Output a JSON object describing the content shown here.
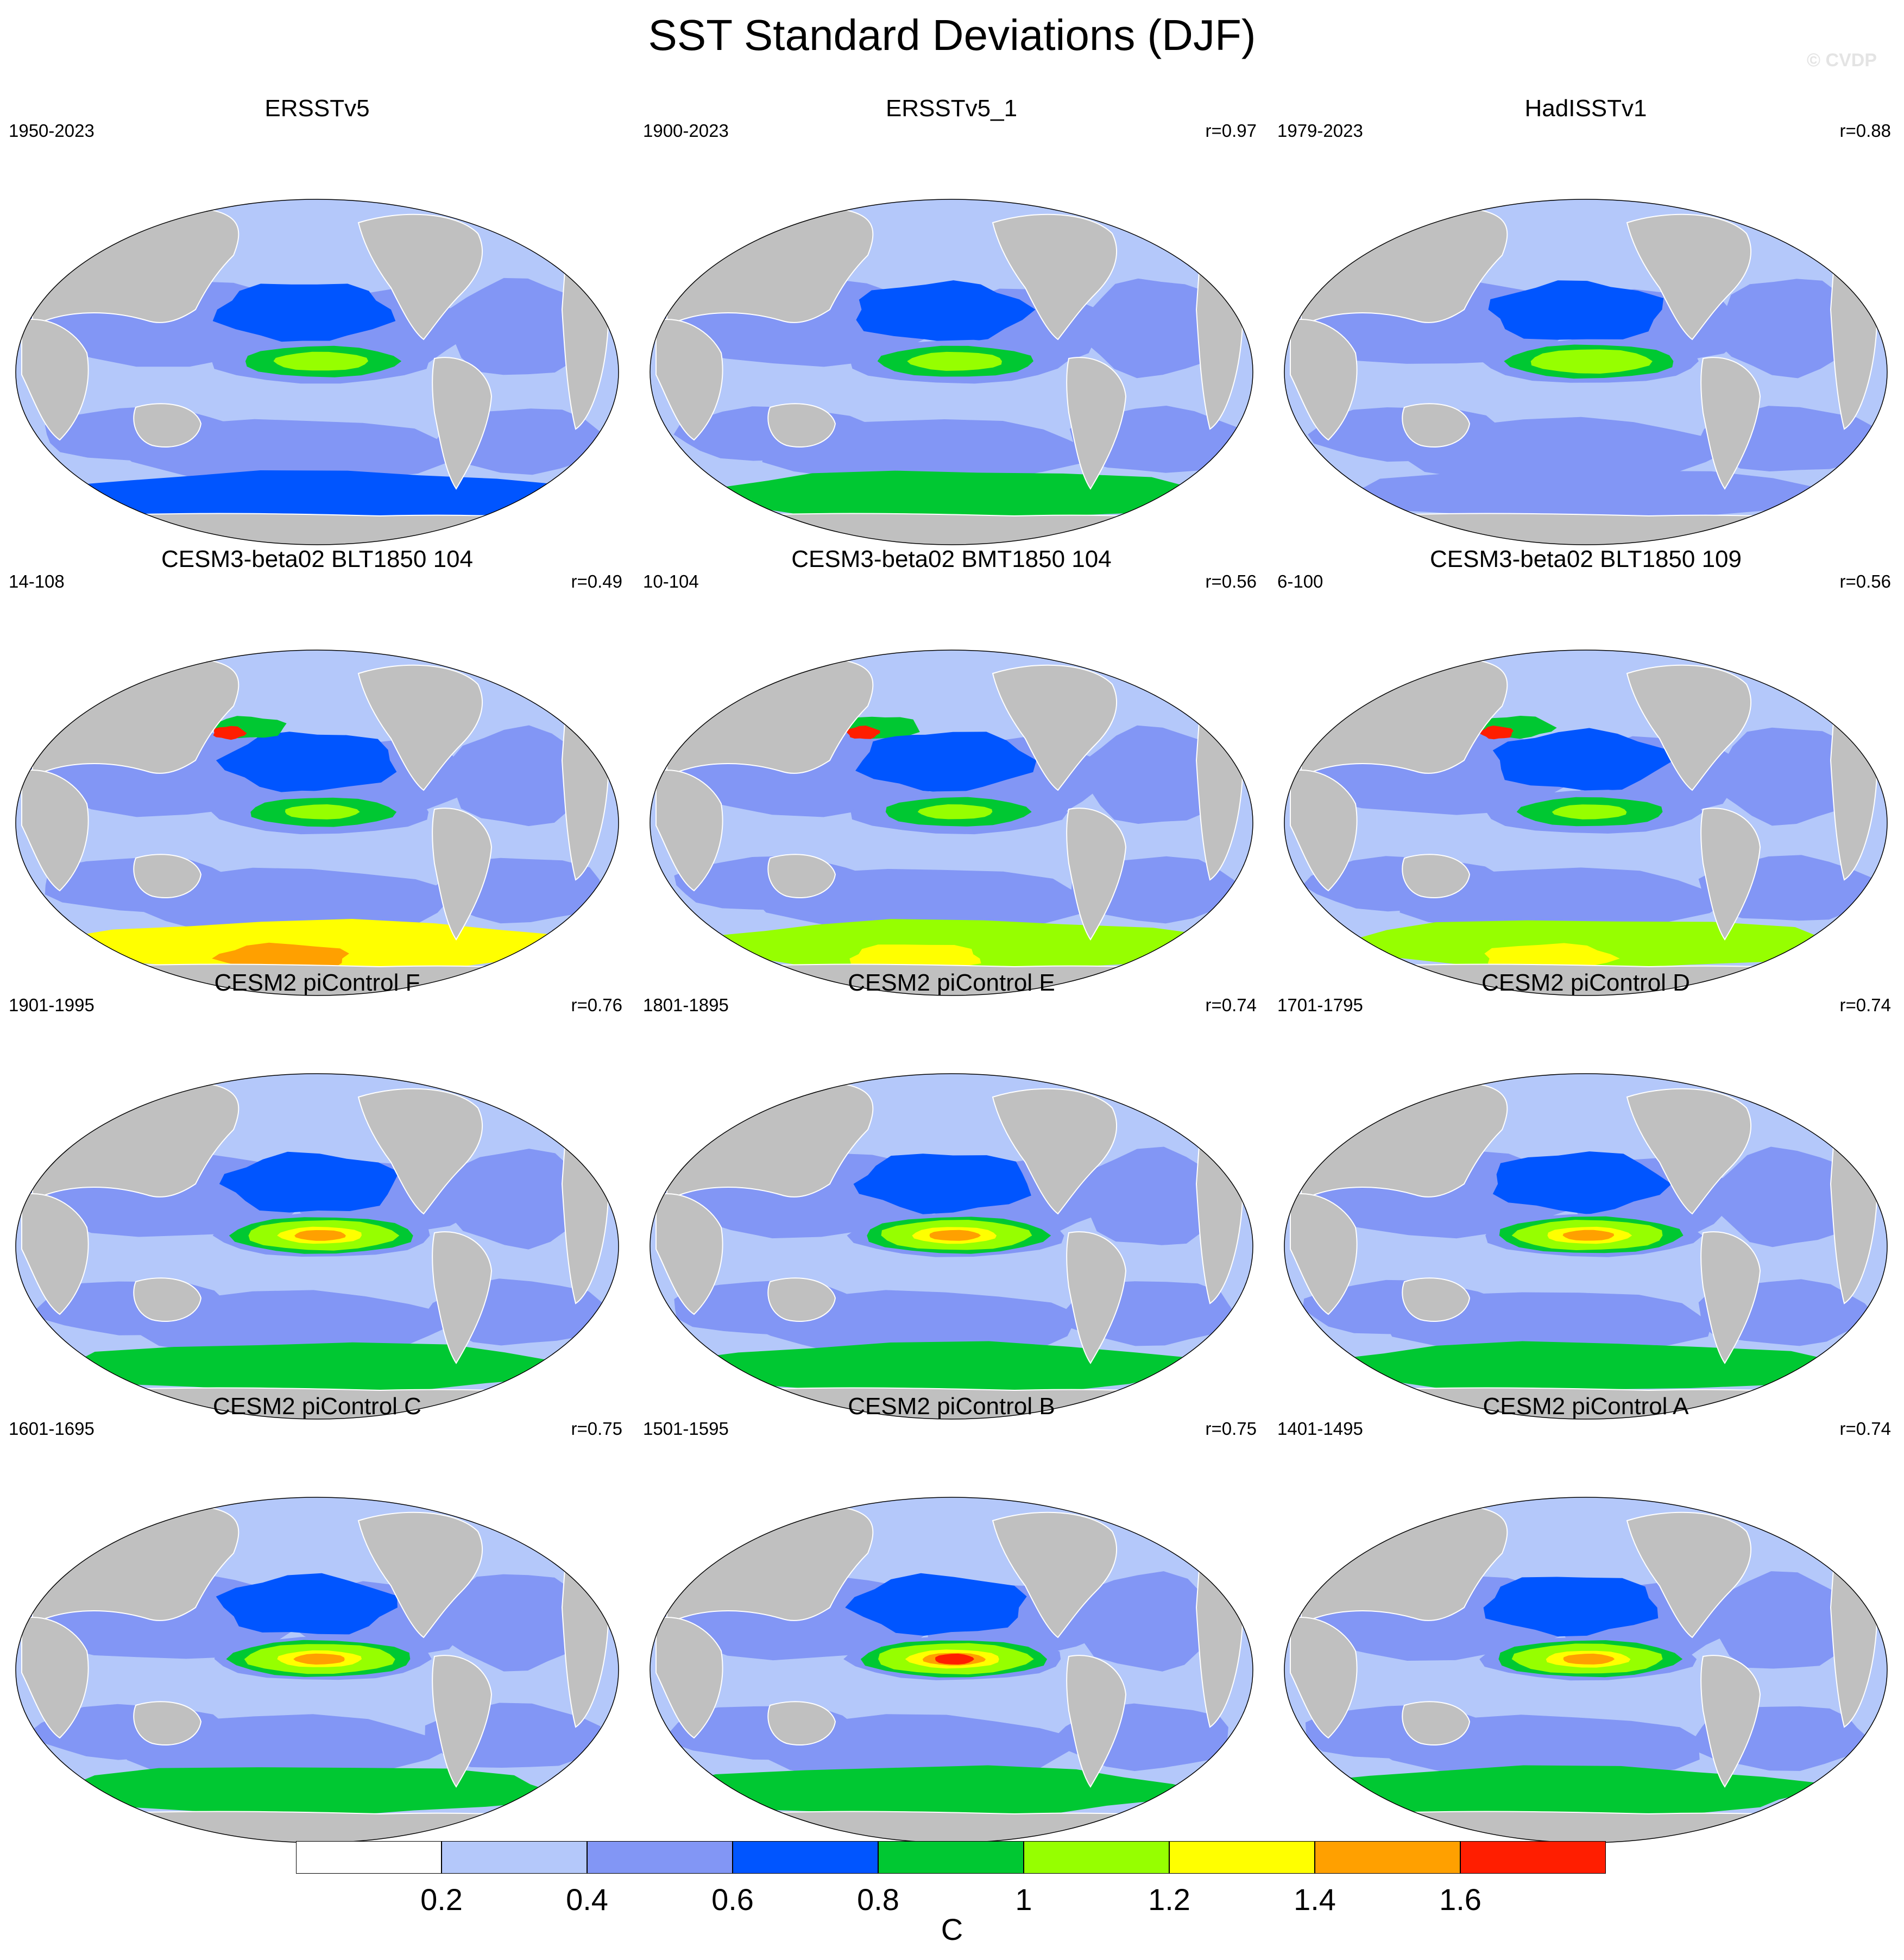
{
  "title": "SST Standard Deviations (DJF)",
  "watermark": "© CVDP",
  "colorbar": {
    "colors": [
      "#ffffff",
      "#b4c8fa",
      "#8296f5",
      "#0055ff",
      "#00c832",
      "#96ff00",
      "#ffff00",
      "#ffa000",
      "#ff1e00"
    ],
    "tick_labels": [
      "0.2",
      "0.4",
      "0.6",
      "0.8",
      "1",
      "1.2",
      "1.4",
      "1.6"
    ],
    "unit": "C"
  },
  "map_colors": {
    "land": "#c0c0c0",
    "ocean_low": "#b4c8fa",
    "ocean_mid": "#8296f5",
    "ocean_high": "#0055ff",
    "green": "#00c832",
    "lime": "#96ff00",
    "yellow": "#ffff00",
    "orange": "#ffa000",
    "red": "#ff1e00"
  },
  "panels": [
    {
      "title": "ERSSTv5",
      "years": "1950-2023",
      "corr": "",
      "enso_peak": 1.1,
      "southern_ocean": 0.7
    },
    {
      "title": "ERSSTv5_1",
      "years": "1900-2023",
      "corr": "r=0.97",
      "enso_peak": 1.1,
      "southern_ocean": 0.8
    },
    {
      "title": "HadISSTv1",
      "years": "1979-2023",
      "corr": "r=0.88",
      "enso_peak": 1.3,
      "southern_ocean": 0.5
    },
    {
      "title": "CESM3-beta02 BLT1850 104",
      "years": "14-108",
      "corr": "r=0.49",
      "enso_peak": 1.0,
      "southern_ocean": 1.3
    },
    {
      "title": "CESM3-beta02 BMT1850 104",
      "years": "10-104",
      "corr": "r=0.56",
      "enso_peak": 1.0,
      "southern_ocean": 1.2
    },
    {
      "title": "CESM3-beta02 BLT1850 109",
      "years": "6-100",
      "corr": "r=0.56",
      "enso_peak": 1.0,
      "southern_ocean": 1.2
    },
    {
      "title": "CESM2 piControl F",
      "years": "1901-1995",
      "corr": "r=0.76",
      "enso_peak": 1.7,
      "southern_ocean": 0.9
    },
    {
      "title": "CESM2 piControl E",
      "years": "1801-1895",
      "corr": "r=0.74",
      "enso_peak": 1.7,
      "southern_ocean": 0.9
    },
    {
      "title": "CESM2 piControl D",
      "years": "1701-1795",
      "corr": "r=0.74",
      "enso_peak": 1.7,
      "southern_ocean": 0.9
    },
    {
      "title": "CESM2 piControl C",
      "years": "1601-1695",
      "corr": "r=0.75",
      "enso_peak": 1.7,
      "southern_ocean": 0.9
    },
    {
      "title": "CESM2 piControl B",
      "years": "1501-1595",
      "corr": "r=0.75",
      "enso_peak": 1.8,
      "southern_ocean": 0.9
    },
    {
      "title": "CESM2 piControl A",
      "years": "1401-1495",
      "corr": "r=0.74",
      "enso_peak": 1.7,
      "southern_ocean": 0.9
    }
  ]
}
